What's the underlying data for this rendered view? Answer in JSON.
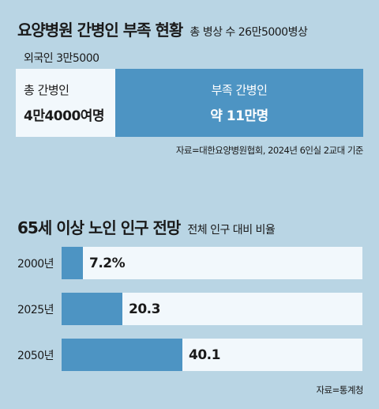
{
  "section1": {
    "title": "요양병원 간병인 부족 현황",
    "subtitle": "총 병상 수 26만5000병상",
    "foreign_label": "외국인 3만5000",
    "total": {
      "label": "총 간병인",
      "value": "4만4000여명"
    },
    "shortage": {
      "label": "부족 간병인",
      "value": "약 11만명"
    },
    "source": "자료=대한요양병원협회, 2024년 6인실 2교대 기준",
    "colors": {
      "filled": "#4d94c3",
      "light": "#f2f8fc",
      "background": "#b9d5e4"
    }
  },
  "section2": {
    "title": "65세 이상 노인 인구 전망",
    "subtitle": "전체 인구 대비 비율",
    "source": "자료=통계청"
  },
  "chart_data": {
    "type": "bar",
    "orientation": "horizontal",
    "title": "65세 이상 노인 인구 전망",
    "subtitle": "전체 인구 대비 비율",
    "categories": [
      "2000년",
      "2025년",
      "2050년"
    ],
    "values": [
      7.2,
      20.3,
      40.1
    ],
    "value_labels": [
      "7.2%",
      "20.3",
      "40.1"
    ],
    "xlim": [
      0,
      100
    ],
    "grid": false
  }
}
